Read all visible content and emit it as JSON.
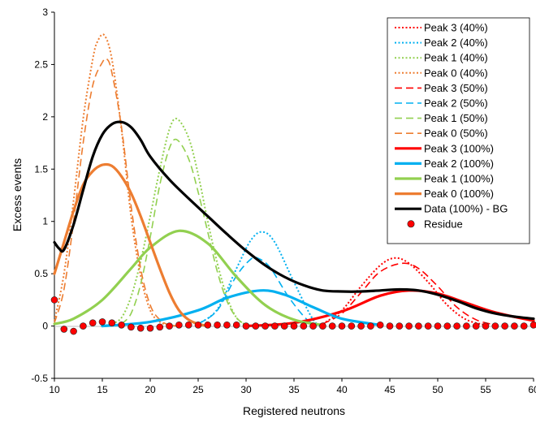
{
  "chart_data": {
    "type": "line",
    "title": "",
    "xlabel": "Registered neutrons",
    "ylabel": "Excess events",
    "xlim": [
      10,
      60
    ],
    "ylim": [
      -0.5,
      3
    ],
    "xticks": [
      10,
      15,
      20,
      25,
      30,
      35,
      40,
      45,
      50,
      55,
      60
    ],
    "yticks": [
      -0.5,
      0,
      0.5,
      1,
      1.5,
      2,
      2.5,
      3
    ],
    "ytick_labels": [
      "-0.5",
      "0",
      "0.5",
      "1",
      "1.5",
      "2",
      "2.5",
      "3"
    ],
    "grid": false,
    "legend_position": "top-right",
    "series": [
      {
        "name": "Peak 3 (40%)",
        "color": "#ff0000",
        "style": "dotted",
        "x": [
          38,
          40,
          42,
          44,
          45.5,
          47,
          49,
          51,
          53,
          55
        ],
        "y": [
          0.02,
          0.15,
          0.38,
          0.58,
          0.65,
          0.6,
          0.42,
          0.2,
          0.06,
          0.01
        ]
      },
      {
        "name": "Peak 2 (40%)",
        "color": "#00b0f0",
        "style": "dotted",
        "x": [
          25,
          27,
          29,
          30.5,
          31.7,
          33,
          35,
          37,
          38
        ],
        "y": [
          0.02,
          0.16,
          0.55,
          0.82,
          0.9,
          0.8,
          0.42,
          0.06,
          0.01
        ]
      },
      {
        "name": "Peak 1 (40%)",
        "color": "#92d050",
        "style": "dotted",
        "x": [
          16,
          17,
          18,
          19,
          20,
          21,
          22,
          22.8,
          24,
          25,
          26,
          27,
          28,
          29,
          30
        ],
        "y": [
          0.02,
          0.08,
          0.28,
          0.62,
          1.05,
          1.5,
          1.88,
          1.98,
          1.8,
          1.45,
          1.0,
          0.6,
          0.28,
          0.08,
          0.01
        ]
      },
      {
        "name": "Peak 0 (40%)",
        "color": "#ed7d31",
        "style": "dotted",
        "x": [
          10,
          11,
          12,
          13,
          14,
          14.5,
          15.2,
          16,
          17,
          18,
          19,
          20,
          21,
          22,
          23
        ],
        "y": [
          0.05,
          0.5,
          1.2,
          1.98,
          2.55,
          2.72,
          2.78,
          2.55,
          1.88,
          1.05,
          0.48,
          0.15,
          0.04,
          0.01,
          0.0
        ]
      },
      {
        "name": "Peak 3 (50%)",
        "color": "#ff0000",
        "style": "dashed",
        "x": [
          38,
          40,
          42,
          44,
          46.3,
          48,
          50,
          52,
          54,
          56
        ],
        "y": [
          0.02,
          0.12,
          0.32,
          0.52,
          0.6,
          0.55,
          0.38,
          0.18,
          0.06,
          0.01
        ]
      },
      {
        "name": "Peak 2 (50%)",
        "color": "#00b0f0",
        "style": "dashed",
        "x": [
          25,
          27,
          29,
          30.5,
          31.2,
          32.5,
          34.5,
          36.5,
          38
        ],
        "y": [
          0.02,
          0.15,
          0.48,
          0.64,
          0.65,
          0.56,
          0.27,
          0.05,
          0.0
        ]
      },
      {
        "name": "Peak 1 (50%)",
        "color": "#92d050",
        "style": "dashed",
        "x": [
          17,
          18,
          19,
          20,
          21,
          22,
          22.8,
          24,
          25,
          26,
          27,
          28,
          29,
          30
        ],
        "y": [
          0.02,
          0.12,
          0.4,
          0.85,
          1.35,
          1.7,
          1.78,
          1.6,
          1.28,
          0.9,
          0.52,
          0.24,
          0.08,
          0.01
        ]
      },
      {
        "name": "Peak 0 (50%)",
        "color": "#ed7d31",
        "style": "dashed",
        "x": [
          10,
          11,
          12,
          13,
          14,
          15,
          15.5,
          16,
          17,
          18,
          19,
          20,
          21,
          22,
          23
        ],
        "y": [
          0.03,
          0.35,
          1.0,
          1.75,
          2.3,
          2.52,
          2.55,
          2.42,
          1.9,
          1.15,
          0.55,
          0.2,
          0.06,
          0.01,
          0.0
        ]
      },
      {
        "name": "Peak 3 (100%)",
        "color": "#ff0000",
        "style": "solid",
        "x": [
          30,
          35,
          40,
          44,
          47,
          50,
          53,
          56,
          60
        ],
        "y": [
          0.0,
          0.03,
          0.14,
          0.29,
          0.34,
          0.31,
          0.22,
          0.13,
          0.05
        ]
      },
      {
        "name": "Peak 2 (100%)",
        "color": "#00b0f0",
        "style": "solid",
        "x": [
          15,
          20,
          25,
          28,
          31.5,
          34,
          37,
          40,
          44
        ],
        "y": [
          0.0,
          0.04,
          0.15,
          0.27,
          0.34,
          0.3,
          0.18,
          0.07,
          0.01
        ]
      },
      {
        "name": "Peak 1 (100%)",
        "color": "#92d050",
        "style": "solid",
        "x": [
          10,
          12,
          15,
          18,
          20,
          23,
          26,
          29,
          32,
          35,
          38
        ],
        "y": [
          0.02,
          0.07,
          0.25,
          0.55,
          0.75,
          0.91,
          0.79,
          0.47,
          0.2,
          0.06,
          0.01
        ]
      },
      {
        "name": "Peak 0 (100%)",
        "color": "#ed7d31",
        "style": "solid",
        "x": [
          10,
          11,
          12,
          13,
          14,
          15,
          16,
          17,
          18,
          19,
          20,
          21,
          22,
          23,
          24,
          25,
          26
        ],
        "y": [
          0.5,
          0.8,
          1.1,
          1.35,
          1.48,
          1.54,
          1.53,
          1.43,
          1.27,
          1.05,
          0.8,
          0.55,
          0.32,
          0.15,
          0.06,
          0.02,
          0.0
        ]
      },
      {
        "name": "Data (100%) - BG",
        "color": "#000000",
        "style": "solid",
        "x": [
          10,
          10.5,
          11,
          12,
          13,
          14,
          15,
          16,
          17,
          18,
          19,
          20,
          22,
          24,
          26,
          28,
          30,
          32,
          34,
          36,
          38,
          40,
          42,
          44,
          46,
          48,
          50,
          52,
          54,
          56,
          58,
          60
        ],
        "y": [
          0.8,
          0.74,
          0.73,
          0.97,
          1.3,
          1.62,
          1.83,
          1.93,
          1.95,
          1.9,
          1.78,
          1.62,
          1.4,
          1.22,
          1.05,
          0.88,
          0.72,
          0.58,
          0.47,
          0.39,
          0.34,
          0.33,
          0.33,
          0.34,
          0.35,
          0.34,
          0.3,
          0.24,
          0.17,
          0.12,
          0.09,
          0.07
        ]
      },
      {
        "name": "Residue",
        "color": "#ff0000",
        "style": "marker",
        "x": [
          10,
          11,
          12,
          13,
          14,
          15,
          16,
          17,
          18,
          19,
          20,
          21,
          22,
          23,
          24,
          25,
          26,
          27,
          28,
          29,
          30,
          31,
          32,
          33,
          34,
          35,
          36,
          37,
          38,
          39,
          40,
          41,
          42,
          43,
          44,
          45,
          46,
          47,
          48,
          49,
          50,
          51,
          52,
          53,
          54,
          55,
          56,
          57,
          58,
          59,
          60
        ],
        "y": [
          0.25,
          -0.03,
          -0.05,
          0.0,
          0.03,
          0.04,
          0.03,
          0.01,
          -0.01,
          -0.02,
          -0.02,
          -0.01,
          0.0,
          0.01,
          0.01,
          0.01,
          0.01,
          0.01,
          0.01,
          0.01,
          0.0,
          0.0,
          0.0,
          0.0,
          0.0,
          0.0,
          0.0,
          0.0,
          0.0,
          0.0,
          0.0,
          0.0,
          0.0,
          0.0,
          0.01,
          0.0,
          0.0,
          0.0,
          0.0,
          0.0,
          0.0,
          0.0,
          0.0,
          0.0,
          0.0,
          0.0,
          0.0,
          0.0,
          0.0,
          0.0,
          0.01
        ]
      }
    ]
  }
}
